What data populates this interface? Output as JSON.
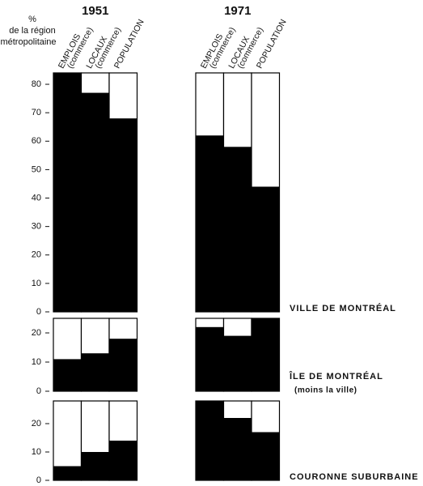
{
  "chart_data": {
    "type": "bar",
    "y_label": [
      "%",
      "de la région",
      "métropolitaine"
    ],
    "groups": [
      "1951",
      "1971"
    ],
    "categories": [
      [
        "EMPLOIS",
        "(commerce)"
      ],
      [
        "LOCAUX",
        "(commerce)"
      ],
      [
        "POPULATION"
      ]
    ],
    "color": "#000000",
    "panels": [
      {
        "name": "VILLE DE MONTRÉAL",
        "ylim": [
          0,
          84
        ],
        "yticks": [
          0,
          10,
          20,
          30,
          40,
          50,
          60,
          70,
          80
        ],
        "series": [
          {
            "name": "1951",
            "values": [
              84,
              77,
              68
            ]
          },
          {
            "name": "1971",
            "values": [
              62,
              58,
              44
            ]
          }
        ]
      },
      {
        "name": "ÎLE DE MONTRÉAL",
        "note": "(moins la ville)",
        "ylim": [
          0,
          25
        ],
        "yticks": [
          0,
          10,
          20
        ],
        "series": [
          {
            "name": "1951",
            "values": [
              11,
              13,
              18
            ]
          },
          {
            "name": "1971",
            "values": [
              22,
              19,
              25
            ]
          }
        ]
      },
      {
        "name": "COURONNE SUBURBAINE",
        "ylim": [
          0,
          28
        ],
        "yticks": [
          0,
          10,
          20
        ],
        "series": [
          {
            "name": "1951",
            "values": [
              5,
              10,
              14
            ]
          },
          {
            "name": "1971",
            "values": [
              28,
              22,
              17
            ]
          }
        ]
      }
    ]
  }
}
